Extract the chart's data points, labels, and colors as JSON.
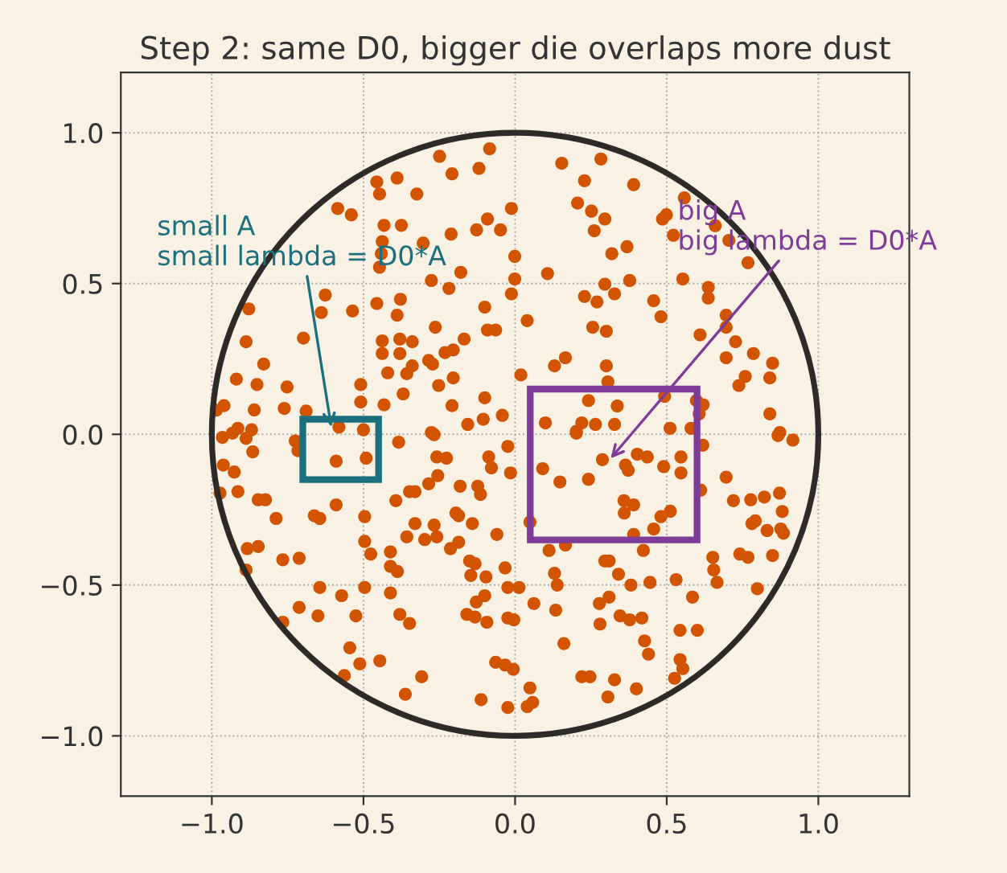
{
  "chart_data": {
    "type": "scatter",
    "title": "Step 2: same D0, bigger die overlaps more dust",
    "xlim": [
      -1.3,
      1.3
    ],
    "ylim": [
      -1.2,
      1.2
    ],
    "xticks": [
      {
        "value": -1,
        "label": "−1.0"
      },
      {
        "value": -0.5,
        "label": "−0.5"
      },
      {
        "value": 0,
        "label": "0.0"
      },
      {
        "value": 0.5,
        "label": "0.5"
      },
      {
        "value": 1,
        "label": "1.0"
      }
    ],
    "yticks": [
      {
        "value": -1,
        "label": "−1.0"
      },
      {
        "value": -0.5,
        "label": "−0.5"
      },
      {
        "value": 0,
        "label": "0.0"
      },
      {
        "value": 0.5,
        "label": "0.5"
      },
      {
        "value": 1,
        "label": "1.0"
      }
    ],
    "grid": true,
    "annotations": [
      {
        "text": "small A\nsmall lambda = D0*A",
        "x": -0.606,
        "y": 0.024
      },
      {
        "text": "big A\nbig lambda = D0*A",
        "x": 0.315,
        "y": -0.08
      }
    ],
    "series": [
      {
        "marker": "circle",
        "color": "#d35400",
        "x": [
          -0.084,
          -0.249,
          -0.208,
          -0.119,
          -0.456,
          -0.389,
          -0.447,
          -0.324,
          -0.585,
          -0.54,
          -0.432,
          -0.375,
          -0.012,
          -0.091,
          -0.127,
          -0.048,
          -0.211,
          -0.438,
          -0.303,
          -0.001,
          -0.441,
          -0.447,
          -0.276,
          -0.218,
          -0.179,
          -0.001,
          -0.012,
          -0.626,
          -0.878,
          -0.639,
          -0.536,
          -0.456,
          -0.378,
          -0.389,
          -0.1,
          -0.091,
          -0.064,
          -0.263,
          -0.698,
          -0.887,
          -0.438,
          -0.38,
          -0.339,
          -0.438,
          -0.38,
          -0.168,
          -0.204,
          -0.231,
          -0.285,
          -0.339,
          -0.272,
          -0.357,
          -0.42,
          -0.829,
          -0.919,
          -0.851,
          -0.752,
          -0.509,
          -0.252,
          -0.204,
          -0.1,
          -0.509,
          -0.432,
          -0.369,
          -0.96,
          -0.985,
          -0.86,
          -0.761,
          -0.689,
          -0.208,
          -0.156,
          -0.105,
          -0.042,
          -0.914,
          -0.869,
          -0.581,
          -0.5,
          -0.276,
          0.154,
          0.283,
          0.229,
          0.391,
          0.206,
          0.252,
          0.296,
          0.261,
          0.558,
          0.486,
          0.499,
          0.522,
          0.66,
          0.705,
          0.768,
          0.319,
          0.369,
          0.107,
          0.378,
          0.296,
          0.229,
          0.27,
          0.328,
          0.457,
          0.553,
          0.637,
          0.637,
          0.04,
          0.481,
          0.256,
          0.301,
          0.696,
          0.696,
          0.61,
          0.727,
          0.696,
          0.786,
          0.849,
          0.759,
          0.738,
          0.84,
          0.166,
          0.13,
          0.019,
          0.301,
          0.306,
          0.242,
          0.337,
          0.493,
          0.598,
          0.62,
          0.607,
          0.84,
          0.1,
          0.22,
          0.265,
          0.328,
          0.202,
          0.511,
          0.58,
          0.873,
          -0.965,
          -0.932,
          -0.887,
          -0.725,
          -0.716,
          -0.59,
          -0.491,
          -0.384,
          -0.267,
          -0.258,
          -0.226,
          -0.087,
          -0.078,
          -0.024,
          -0.015,
          -0.962,
          -0.926,
          -0.865,
          -0.973,
          -0.914,
          -0.847,
          -0.823,
          -0.788,
          -0.662,
          -0.644,
          -0.59,
          -0.496,
          -0.393,
          -0.348,
          -0.33,
          -0.285,
          -0.255,
          -0.181,
          -0.123,
          -0.114,
          -0.195,
          -0.186,
          -0.141,
          -0.06,
          -0.33,
          -0.357,
          -0.298,
          -0.258,
          -0.267,
          -0.213,
          -0.186,
          -0.496,
          -0.476,
          -0.411,
          -0.411,
          -0.388,
          -0.883,
          -0.847,
          -0.887,
          -0.766,
          -0.712,
          -0.15,
          -0.132,
          -0.096,
          -0.146,
          -0.033,
          -0.024,
          -0.1,
          -0.128,
          -0.159,
          -0.132,
          -0.093,
          -0.024,
          -0.644,
          -0.572,
          -0.496,
          -0.411,
          -0.712,
          -0.766,
          -0.65,
          -0.525,
          -0.38,
          -0.348,
          -0.545,
          -0.512,
          -0.446,
          -0.563,
          -0.308,
          -0.362,
          -0.064,
          -0.033,
          -0.006,
          -0.112,
          -0.024,
          0.202,
          0.867,
          0.916,
          0.619,
          0.091,
          0.148,
          0.242,
          0.288,
          0.364,
          0.373,
          0.403,
          0.436,
          0.49,
          0.547,
          0.547,
          0.696,
          0.049,
          0.612,
          0.359,
          0.391,
          0.36,
          0.481,
          0.512,
          0.457,
          0.391,
          0.72,
          0.777,
          0.822,
          0.872,
          0.881,
          0.792,
          0.781,
          0.831,
          0.876,
          0.885,
          0.112,
          0.166,
          0.423,
          0.296,
          0.31,
          0.652,
          0.655,
          0.666,
          0.741,
          0.768,
          0.849,
          0.799,
          0.013,
          0.13,
          0.139,
          0.341,
          0.382,
          0.445,
          0.531,
          0.585,
          0.062,
          0.134,
          0.278,
          0.31,
          0.28,
          0.346,
          0.378,
          0.418,
          -0.004,
          0.544,
          0.601,
          0.161,
          0.427,
          0.44,
          0.544,
          0.553,
          0.526,
          0.22,
          0.247,
          0.328,
          0.4,
          0.306,
          0.049,
          0.058,
          0.04
        ],
        "values": [
          0.947,
          0.922,
          0.864,
          0.882,
          0.837,
          0.85,
          0.797,
          0.797,
          0.749,
          0.728,
          0.693,
          0.693,
          0.749,
          0.714,
          0.678,
          0.678,
          0.664,
          0.639,
          0.634,
          0.59,
          0.599,
          0.554,
          0.51,
          0.484,
          0.537,
          0.515,
          0.466,
          0.462,
          0.416,
          0.404,
          0.409,
          0.434,
          0.448,
          0.395,
          0.422,
          0.346,
          0.346,
          0.355,
          0.319,
          0.307,
          0.31,
          0.316,
          0.307,
          0.268,
          0.268,
          0.316,
          0.28,
          0.271,
          0.245,
          0.227,
          0.233,
          0.201,
          0.204,
          0.233,
          0.183,
          0.165,
          0.157,
          0.165,
          0.162,
          0.187,
          0.121,
          0.107,
          0.098,
          0.134,
          0.095,
          0.08,
          0.081,
          0.086,
          0.077,
          0.095,
          0.033,
          0.05,
          0.063,
          0.02,
          0.015,
          0.024,
          0.015,
          0.006,
          0.899,
          0.913,
          0.841,
          0.828,
          0.767,
          0.74,
          0.714,
          0.675,
          0.784,
          0.714,
          0.728,
          0.66,
          0.692,
          0.643,
          0.569,
          0.599,
          0.622,
          0.533,
          0.51,
          0.498,
          0.457,
          0.439,
          0.466,
          0.443,
          0.515,
          0.487,
          0.452,
          0.377,
          0.39,
          0.355,
          0.342,
          0.395,
          0.355,
          0.33,
          0.307,
          0.254,
          0.268,
          0.236,
          0.192,
          0.162,
          0.187,
          0.254,
          0.227,
          0.197,
          0.227,
          0.174,
          0.112,
          0.094,
          0.126,
          0.112,
          0.098,
          0.068,
          0.068,
          0.038,
          0.038,
          0.033,
          0.033,
          0.01,
          0.02,
          0.02,
          0.006,
          -0.01,
          0.004,
          -0.013,
          -0.022,
          -0.054,
          -0.089,
          -0.079,
          -0.026,
          -0.001,
          -0.075,
          -0.079,
          -0.075,
          -0.111,
          -0.04,
          -0.128,
          -0.102,
          -0.125,
          -0.058,
          -0.195,
          -0.19,
          -0.217,
          -0.217,
          -0.279,
          -0.27,
          -0.279,
          -0.234,
          -0.273,
          -0.22,
          -0.19,
          -0.19,
          -0.164,
          -0.137,
          -0.172,
          -0.172,
          -0.199,
          -0.261,
          -0.27,
          -0.296,
          -0.332,
          -0.296,
          -0.34,
          -0.349,
          -0.34,
          -0.301,
          -0.379,
          -0.358,
          -0.355,
          -0.397,
          -0.39,
          -0.438,
          -0.455,
          -0.379,
          -0.372,
          -0.45,
          -0.416,
          -0.411,
          -0.42,
          -0.429,
          -0.473,
          -0.468,
          -0.443,
          -0.508,
          -0.535,
          -0.556,
          -0.597,
          -0.606,
          -0.623,
          -0.609,
          -0.508,
          -0.535,
          -0.508,
          -0.526,
          -0.574,
          -0.623,
          -0.602,
          -0.602,
          -0.597,
          -0.627,
          -0.708,
          -0.761,
          -0.751,
          -0.8,
          -0.804,
          -0.862,
          -0.756,
          -0.765,
          -0.779,
          -0.88,
          -0.906,
          0.004,
          -0.004,
          -0.019,
          -0.036,
          -0.114,
          -0.158,
          -0.149,
          -0.084,
          -0.102,
          -0.119,
          -0.066,
          -0.075,
          -0.107,
          -0.075,
          -0.128,
          -0.142,
          -0.291,
          -0.185,
          -0.22,
          -0.234,
          -0.261,
          -0.273,
          -0.255,
          -0.314,
          -0.332,
          -0.22,
          -0.217,
          -0.208,
          -0.195,
          -0.256,
          -0.287,
          -0.296,
          -0.319,
          -0.314,
          -0.328,
          -0.385,
          -0.367,
          -0.385,
          -0.42,
          -0.42,
          -0.408,
          -0.45,
          -0.491,
          -0.397,
          -0.408,
          -0.402,
          -0.512,
          -0.508,
          -0.461,
          -0.5,
          -0.464,
          -0.5,
          -0.491,
          -0.482,
          -0.54,
          -0.561,
          -0.583,
          -0.561,
          -0.54,
          -0.629,
          -0.602,
          -0.615,
          -0.609,
          -0.615,
          -0.65,
          -0.65,
          -0.694,
          -0.685,
          -0.729,
          -0.747,
          -0.777,
          -0.809,
          -0.804,
          -0.804,
          -0.814,
          -0.844,
          -0.871,
          -0.841,
          -0.889,
          -0.903
        ]
      }
    ]
  }
}
